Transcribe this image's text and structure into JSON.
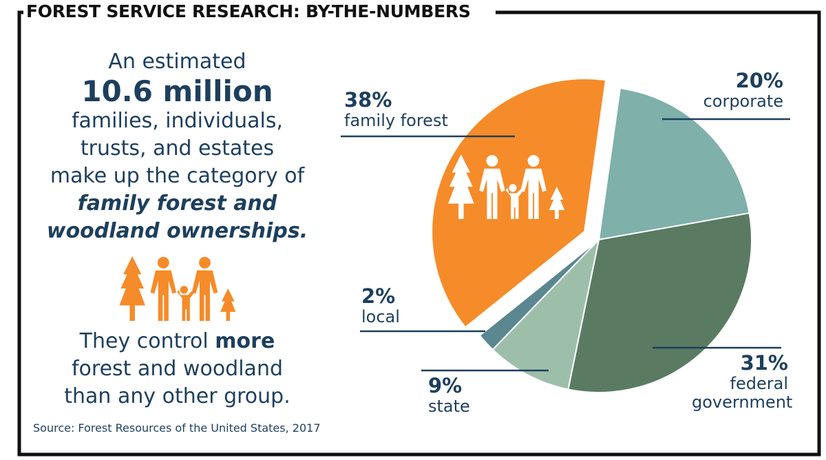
{
  "title": "FOREST SERVICE RESEARCH: BY-THE-NUMBERS",
  "intro": {
    "lead": "An estimated",
    "figure": "10.6 million",
    "lines": [
      "families, individuals,",
      "trusts, and estates",
      "make up the category of"
    ],
    "emphasis": [
      "family forest and",
      "woodland ownerships."
    ]
  },
  "conclusion": {
    "start": "They control",
    "bold": "more",
    "lines": [
      "forest and woodland",
      "than any other group."
    ]
  },
  "source": "Source: Forest Resources of the United States, 2017",
  "chart_data": {
    "type": "pie",
    "categories": [
      "corporate",
      "federal government",
      "state",
      "local",
      "family forest"
    ],
    "values": [
      20,
      31,
      9,
      2,
      38
    ],
    "value_labels": [
      "20%",
      "31%",
      "9%",
      "2%",
      "38%"
    ],
    "colors": [
      "#7fb0aa",
      "#5a7b62",
      "#9dbfaa",
      "#5b8790",
      "#f68b29"
    ],
    "exploded": "family forest"
  }
}
